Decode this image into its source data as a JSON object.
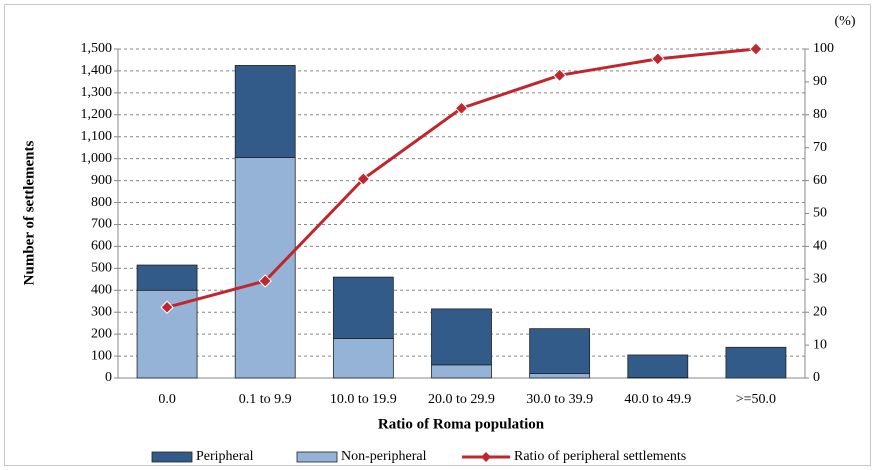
{
  "chart_data": {
    "type": "bar",
    "stacked": true,
    "x_label": "Ratio of Roma population",
    "y_label": "Number of settlements",
    "y2_label": "(%)",
    "categories": [
      "0.0",
      "0.1 to 9.9",
      "10.0 to 19.9",
      "20.0 to 29.9",
      "30.0 to 39.9",
      "40.0 to 49.9",
      ">=50.0"
    ],
    "series": [
      {
        "name": "Peripheral",
        "type": "bar",
        "color": "#335b8a",
        "values": [
          115,
          420,
          280,
          255,
          205,
          103,
          140
        ]
      },
      {
        "name": "Non-peripheral",
        "type": "bar",
        "color": "#95b3d7",
        "values": [
          400,
          1005,
          180,
          60,
          20,
          2,
          0
        ]
      },
      {
        "name": "Ratio of peripheral settlements",
        "type": "line",
        "axis": "y2",
        "color": "#c0262d",
        "values": [
          21.5,
          29.5,
          60.5,
          82,
          92,
          97,
          100
        ]
      }
    ],
    "ylim": [
      0,
      1500
    ],
    "yticks": [
      0,
      100,
      200,
      300,
      400,
      500,
      600,
      700,
      800,
      900,
      {
        "value": 1000,
        "label": "1,000"
      },
      {
        "value": 1100,
        "label": "1,100"
      },
      {
        "value": 1200,
        "label": "1,200"
      },
      {
        "value": 1300,
        "label": "1,300"
      },
      {
        "value": 1400,
        "label": "1,400"
      },
      {
        "value": 1500,
        "label": "1,500"
      }
    ],
    "y2lim": [
      0,
      100
    ],
    "y2ticks": [
      0,
      10,
      20,
      30,
      40,
      50,
      60,
      70,
      80,
      90,
      100
    ],
    "grid": true,
    "legend": "bottom"
  }
}
